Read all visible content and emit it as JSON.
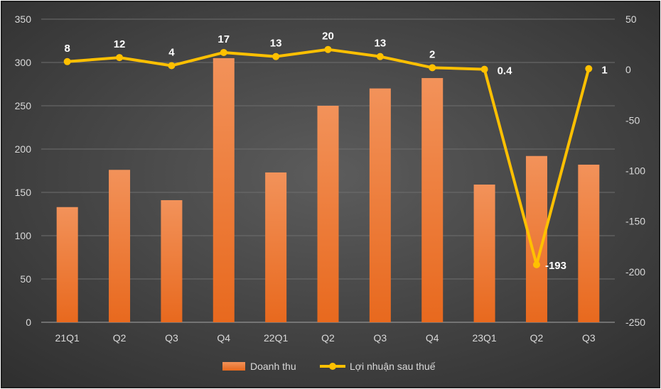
{
  "chart_data": {
    "type": "bar+line",
    "categories": [
      "21Q1",
      "Q2",
      "Q3",
      "Q4",
      "22Q1",
      "Q2",
      "Q3",
      "Q4",
      "23Q1",
      "Q2",
      "Q3"
    ],
    "series": [
      {
        "name": "Doanh thu",
        "type": "bar",
        "axis": "left",
        "color": "#f07b2e",
        "values": [
          133,
          176,
          141,
          305,
          173,
          250,
          270,
          282,
          159,
          192,
          182
        ]
      },
      {
        "name": "Lợi nhuận sau thuế",
        "type": "line",
        "axis": "right",
        "color": "#ffc000",
        "values": [
          8,
          12,
          4,
          17,
          13,
          20,
          13,
          2,
          0.4,
          -193,
          1
        ],
        "labels": [
          "8",
          "12",
          "4",
          "17",
          "13",
          "20",
          "13",
          "2",
          "0.4",
          "-193",
          "1"
        ]
      }
    ],
    "left_axis": {
      "min": 0,
      "max": 350,
      "ticks": [
        "0",
        "50",
        "100",
        "150",
        "200",
        "250",
        "300",
        "350"
      ]
    },
    "right_axis": {
      "min": -250,
      "max": 50,
      "ticks": [
        "-250",
        "-200",
        "-150",
        "-100",
        "-50",
        "0",
        "50"
      ]
    },
    "grid": true,
    "legend": "bottom-center",
    "title": "",
    "xlabel": "",
    "ylabel": ""
  }
}
